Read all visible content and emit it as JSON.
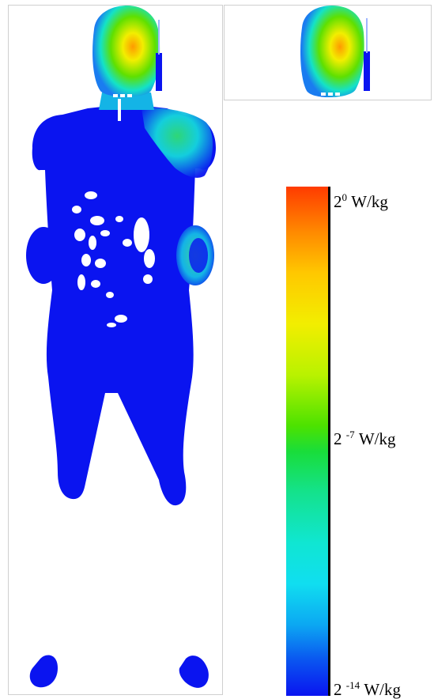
{
  "colorbar": {
    "colors": [
      "#ff3b00",
      "#ff8a00",
      "#ffc800",
      "#f2ee00",
      "#4ce200",
      "#10e6d2",
      "#0a14f0"
    ],
    "ticks": [
      {
        "base": "2",
        "exponent": "0",
        "unit": "W/kg"
      },
      {
        "base": "2",
        "exponent": "-7",
        "unit": "W/kg"
      },
      {
        "base": "2",
        "exponent": "-14",
        "unit": "W/kg"
      }
    ]
  },
  "colors": {
    "body_low_sar": "#0a14f0",
    "head_high_sar": "#f2ee00",
    "head_peak_sar": "#ff3b00",
    "organ_cavities": "#ffffff"
  }
}
